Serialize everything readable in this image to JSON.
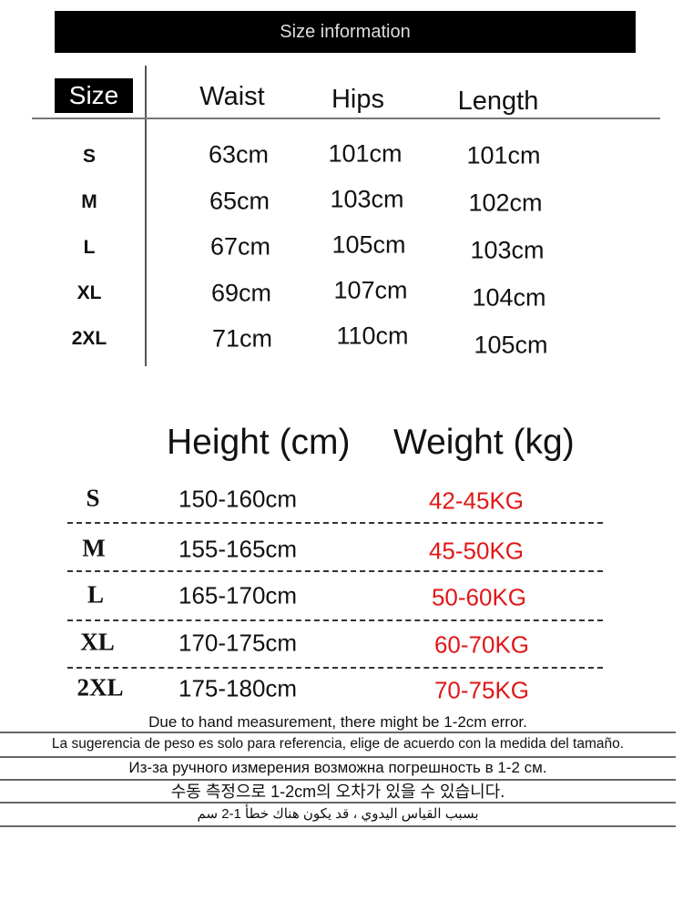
{
  "banner": "Size information",
  "table1": {
    "headers": {
      "size": "Size",
      "waist": "Waist",
      "hips": "Hips",
      "length": "Length"
    },
    "rows": [
      {
        "size": "S",
        "waist": "63cm",
        "hips": "101cm",
        "length": "101cm"
      },
      {
        "size": "M",
        "waist": "65cm",
        "hips": "103cm",
        "length": "102cm"
      },
      {
        "size": "L",
        "waist": "67cm",
        "hips": "105cm",
        "length": "103cm"
      },
      {
        "size": "XL",
        "waist": "69cm",
        "hips": "107cm",
        "length": "104cm"
      },
      {
        "size": "2XL",
        "waist": "71cm",
        "hips": "110cm",
        "length": "105cm"
      }
    ]
  },
  "table2": {
    "headers": {
      "height": "Height (cm)",
      "weight": "Weight (kg)"
    },
    "rows": [
      {
        "size": "S",
        "height": "150-160cm",
        "weight": "42-45KG"
      },
      {
        "size": "M",
        "height": "155-165cm",
        "weight": "45-50KG"
      },
      {
        "size": "L",
        "height": "165-170cm",
        "weight": "50-60KG"
      },
      {
        "size": "XL",
        "height": "170-175cm",
        "weight": "60-70KG"
      },
      {
        "size": "2XL",
        "height": "175-180cm",
        "weight": "70-75KG"
      }
    ],
    "weight_color": "#e01818"
  },
  "notes": [
    "Due to hand measurement, there might be 1-2cm error.",
    "La sugerencia de peso es solo para referencia, elige de acuerdo con la medida del tamaño.",
    "Из-за ручного измерения возможна погрешность в 1-2 см.",
    "수동 측정으로 1-2cm의 오차가 있을 수 있습니다.",
    "بسبب القياس اليدوي ، قد يكون هناك خطأ 1-2 سم"
  ]
}
